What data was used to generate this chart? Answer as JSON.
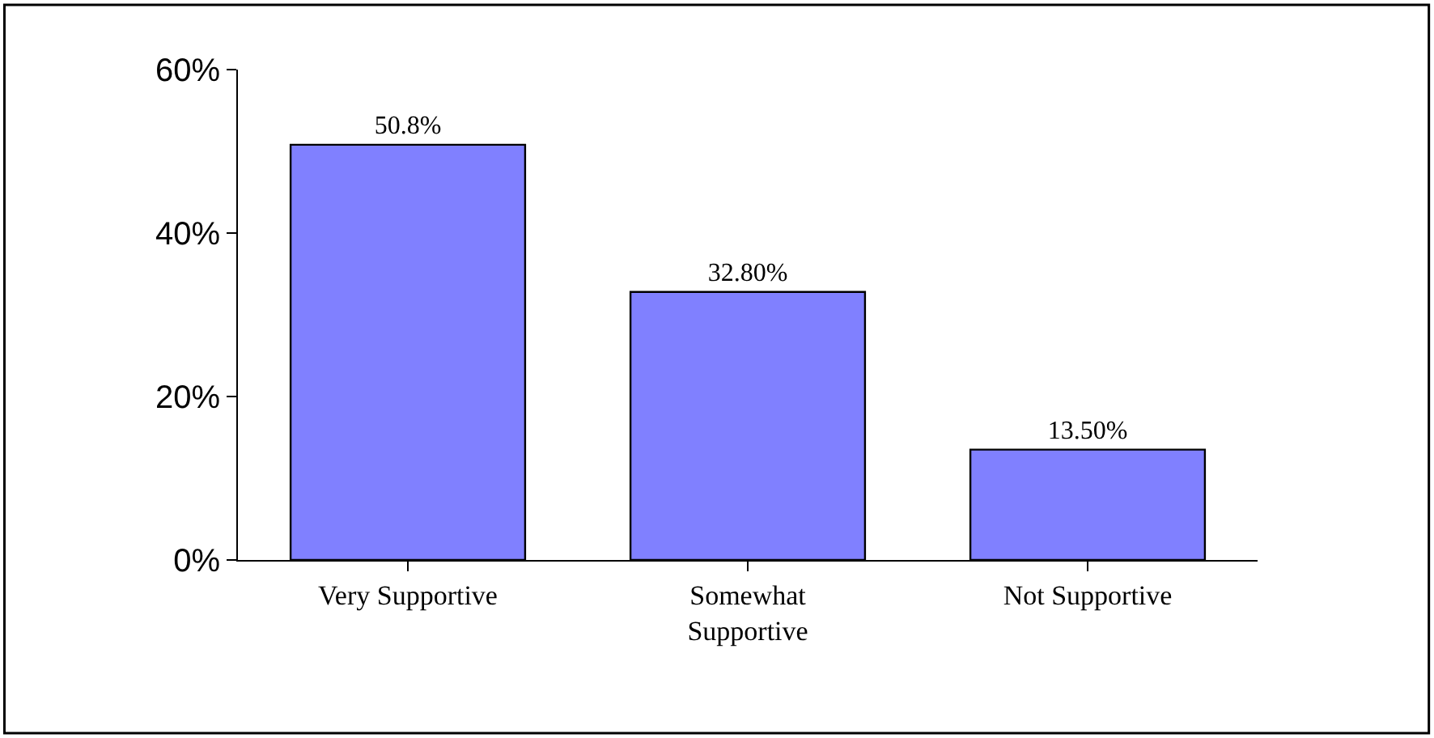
{
  "chart_data": {
    "type": "bar",
    "categories": [
      "Very Supportive",
      "Somewhat Supportive",
      "Not Supportive"
    ],
    "values": [
      50.8,
      32.8,
      13.5
    ],
    "value_labels": [
      "50.8%",
      "32.80%",
      "13.50%"
    ],
    "color": "#8080ff",
    "ylim": [
      0,
      60
    ],
    "yticks": [
      {
        "value": 0,
        "label": "0%"
      },
      {
        "value": 20,
        "label": "20%"
      },
      {
        "value": 40,
        "label": "40%"
      },
      {
        "value": 60,
        "label": "60%"
      }
    ]
  }
}
